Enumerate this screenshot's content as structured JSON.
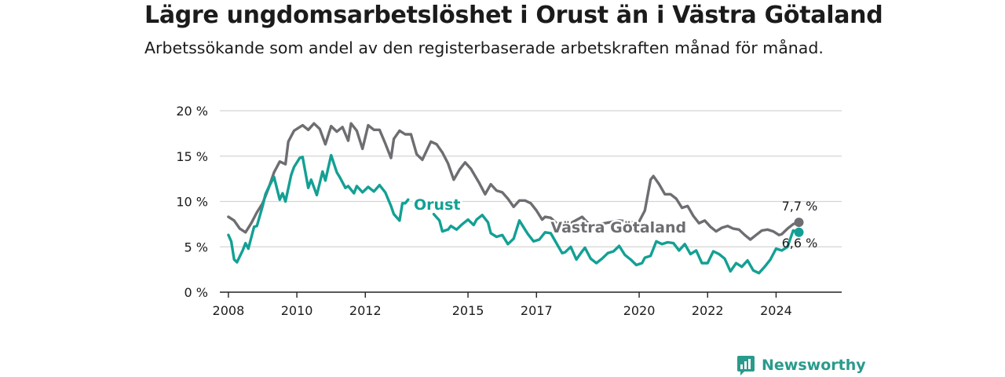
{
  "title": "Lägre ungdomsarbetslöshet i Orust än i Västra Götaland",
  "subtitle": "Arbetssökande som andel av den registerbaserade arbetskraften månad för månad.",
  "brand": {
    "name": "Newsworthy",
    "icon": "newsworthy-logo-icon",
    "color": "#2a9a8c"
  },
  "chart_data": {
    "type": "line",
    "title": "Lägre ungdomsarbetslöshet i Orust än i Västra Götaland",
    "subtitle": "Arbetssökande som andel av den registerbaserade arbetskraften månad för månad.",
    "xlabel": "",
    "ylabel": "",
    "x_ticks": [
      "2008",
      "2010",
      "2012",
      "2015",
      "2017",
      "2020",
      "2022",
      "2024"
    ],
    "y_ticks": [
      "0 %",
      "5 %",
      "10 %",
      "15 %",
      "20 %"
    ],
    "ylim": [
      0,
      20
    ],
    "xlim": [
      "2007-10",
      "2025-12"
    ],
    "grid": true,
    "legend": "inline labels",
    "series": [
      {
        "name": "Västra Götaland",
        "color": "#6e6d72",
        "end_label": "7,7 %",
        "points": [
          [
            "2008-01",
            8.3
          ],
          [
            "2008-03",
            7.9
          ],
          [
            "2008-05",
            7.0
          ],
          [
            "2008-07",
            6.6
          ],
          [
            "2008-09",
            7.6
          ],
          [
            "2008-11",
            8.8
          ],
          [
            "2009-01",
            9.8
          ],
          [
            "2009-03",
            11.4
          ],
          [
            "2009-05",
            13.2
          ],
          [
            "2009-07",
            14.4
          ],
          [
            "2009-09",
            14.1
          ],
          [
            "2009-10",
            16.6
          ],
          [
            "2009-12",
            17.8
          ],
          [
            "2010-03",
            18.4
          ],
          [
            "2010-05",
            17.9
          ],
          [
            "2010-07",
            18.6
          ],
          [
            "2010-09",
            18.0
          ],
          [
            "2010-11",
            16.3
          ],
          [
            "2011-01",
            18.3
          ],
          [
            "2011-03",
            17.7
          ],
          [
            "2011-05",
            18.2
          ],
          [
            "2011-07",
            16.7
          ],
          [
            "2011-08",
            18.6
          ],
          [
            "2011-10",
            17.8
          ],
          [
            "2011-12",
            15.8
          ],
          [
            "2012-02",
            18.4
          ],
          [
            "2012-04",
            17.9
          ],
          [
            "2012-06",
            17.9
          ],
          [
            "2012-08",
            16.4
          ],
          [
            "2012-10",
            14.8
          ],
          [
            "2012-11",
            16.9
          ],
          [
            "2013-01",
            17.8
          ],
          [
            "2013-03",
            17.4
          ],
          [
            "2013-05",
            17.4
          ],
          [
            "2013-07",
            15.2
          ],
          [
            "2013-09",
            14.6
          ],
          [
            "2013-12",
            16.6
          ],
          [
            "2014-02",
            16.3
          ],
          [
            "2014-04",
            15.4
          ],
          [
            "2014-06",
            14.2
          ],
          [
            "2014-08",
            12.4
          ],
          [
            "2014-10",
            13.5
          ],
          [
            "2014-12",
            14.3
          ],
          [
            "2015-02",
            13.6
          ],
          [
            "2015-05",
            12.0
          ],
          [
            "2015-07",
            10.8
          ],
          [
            "2015-09",
            11.9
          ],
          [
            "2015-11",
            11.2
          ],
          [
            "2016-01",
            11.0
          ],
          [
            "2016-03",
            10.3
          ],
          [
            "2016-05",
            9.4
          ],
          [
            "2016-07",
            10.1
          ],
          [
            "2016-09",
            10.1
          ],
          [
            "2016-11",
            9.8
          ],
          [
            "2017-01",
            9.0
          ],
          [
            "2017-03",
            8.0
          ],
          [
            "2017-04",
            8.3
          ],
          [
            "2017-06",
            8.2
          ],
          [
            "2017-08",
            7.6
          ],
          [
            "2017-10",
            7.6
          ],
          [
            "2018-01",
            7.6
          ],
          [
            "2018-05",
            8.3
          ],
          [
            "2018-08",
            7.3
          ],
          [
            "2019-01",
            7.6
          ],
          [
            "2019-06",
            7.9
          ],
          [
            "2019-09",
            7.8
          ],
          [
            "2019-11",
            7.7
          ],
          [
            "2020-01",
            7.8
          ],
          [
            "2020-03",
            9.0
          ],
          [
            "2020-05",
            12.4
          ],
          [
            "2020-06",
            12.8
          ],
          [
            "2020-08",
            11.9
          ],
          [
            "2020-10",
            10.8
          ],
          [
            "2020-12",
            10.8
          ],
          [
            "2021-02",
            10.3
          ],
          [
            "2021-04",
            9.3
          ],
          [
            "2021-06",
            9.5
          ],
          [
            "2021-08",
            8.4
          ],
          [
            "2021-10",
            7.6
          ],
          [
            "2021-12",
            7.9
          ],
          [
            "2022-02",
            7.2
          ],
          [
            "2022-04",
            6.7
          ],
          [
            "2022-06",
            7.1
          ],
          [
            "2022-08",
            7.3
          ],
          [
            "2022-10",
            7.0
          ],
          [
            "2022-12",
            6.9
          ],
          [
            "2023-02",
            6.3
          ],
          [
            "2023-04",
            5.8
          ],
          [
            "2023-06",
            6.3
          ],
          [
            "2023-08",
            6.8
          ],
          [
            "2023-10",
            6.9
          ],
          [
            "2023-12",
            6.7
          ],
          [
            "2024-02",
            6.3
          ],
          [
            "2024-03",
            6.4
          ],
          [
            "2024-05",
            7.0
          ],
          [
            "2024-07",
            7.5
          ],
          [
            "2024-09",
            7.7
          ]
        ]
      },
      {
        "name": "Orust",
        "color": "#13a094",
        "end_label": "6,6 %",
        "points": [
          [
            "2008-01",
            6.3
          ],
          [
            "2008-02",
            5.6
          ],
          [
            "2008-03",
            3.6
          ],
          [
            "2008-04",
            3.3
          ],
          [
            "2008-06",
            4.6
          ],
          [
            "2008-07",
            5.4
          ],
          [
            "2008-08",
            4.8
          ],
          [
            "2008-10",
            7.2
          ],
          [
            "2008-11",
            7.3
          ],
          [
            "2009-01",
            9.5
          ],
          [
            "2009-02",
            10.8
          ],
          [
            "2009-03",
            11.5
          ],
          [
            "2009-05",
            12.7
          ],
          [
            "2009-07",
            10.2
          ],
          [
            "2009-08",
            10.9
          ],
          [
            "2009-09",
            10.0
          ],
          [
            "2009-11",
            12.9
          ],
          [
            "2009-12",
            13.8
          ],
          [
            "2010-02",
            14.8
          ],
          [
            "2010-03",
            14.9
          ],
          [
            "2010-05",
            11.5
          ],
          [
            "2010-06",
            12.4
          ],
          [
            "2010-08",
            10.7
          ],
          [
            "2010-10",
            13.3
          ],
          [
            "2010-11",
            12.3
          ],
          [
            "2011-01",
            15.1
          ],
          [
            "2011-03",
            13.2
          ],
          [
            "2011-04",
            12.7
          ],
          [
            "2011-06",
            11.5
          ],
          [
            "2011-07",
            11.7
          ],
          [
            "2011-09",
            10.9
          ],
          [
            "2011-10",
            11.7
          ],
          [
            "2011-12",
            11.0
          ],
          [
            "2012-02",
            11.6
          ],
          [
            "2012-04",
            11.1
          ],
          [
            "2012-06",
            11.8
          ],
          [
            "2012-08",
            11.0
          ],
          [
            "2012-10",
            9.5
          ],
          [
            "2012-11",
            8.6
          ],
          [
            "2013-01",
            7.9
          ],
          [
            "2013-02",
            9.8
          ],
          [
            "2013-03",
            9.8
          ],
          [
            "2013-04",
            10.2
          ]
        ]
      },
      {
        "name": "Orust",
        "color": "#13a094",
        "end_label": "6,6 %",
        "points": [
          [
            "2014-01",
            8.6
          ],
          [
            "2014-03",
            7.9
          ],
          [
            "2014-04",
            6.7
          ],
          [
            "2014-06",
            6.9
          ],
          [
            "2014-07",
            7.3
          ],
          [
            "2014-09",
            6.9
          ],
          [
            "2014-11",
            7.5
          ],
          [
            "2015-01",
            8.0
          ],
          [
            "2015-03",
            7.4
          ],
          [
            "2015-04",
            8.0
          ],
          [
            "2015-06",
            8.5
          ],
          [
            "2015-08",
            7.7
          ],
          [
            "2015-09",
            6.5
          ],
          [
            "2015-11",
            6.1
          ],
          [
            "2016-01",
            6.3
          ],
          [
            "2016-03",
            5.3
          ],
          [
            "2016-05",
            5.9
          ],
          [
            "2016-07",
            7.9
          ],
          [
            "2016-09",
            6.9
          ],
          [
            "2016-10",
            6.4
          ],
          [
            "2016-12",
            5.6
          ],
          [
            "2017-02",
            5.8
          ],
          [
            "2017-04",
            6.6
          ],
          [
            "2017-06",
            6.5
          ],
          [
            "2017-08",
            5.4
          ],
          [
            "2017-10",
            4.3
          ],
          [
            "2017-11",
            4.4
          ],
          [
            "2018-01",
            5.0
          ],
          [
            "2018-03",
            3.6
          ],
          [
            "2018-05",
            4.5
          ],
          [
            "2018-06",
            4.9
          ],
          [
            "2018-08",
            3.7
          ],
          [
            "2018-10",
            3.2
          ],
          [
            "2018-12",
            3.7
          ],
          [
            "2019-02",
            4.3
          ],
          [
            "2019-04",
            4.5
          ],
          [
            "2019-06",
            5.1
          ],
          [
            "2019-08",
            4.1
          ],
          [
            "2019-10",
            3.6
          ],
          [
            "2019-12",
            3.0
          ],
          [
            "2020-02",
            3.2
          ],
          [
            "2020-03",
            3.8
          ],
          [
            "2020-05",
            4.0
          ],
          [
            "2020-07",
            5.6
          ],
          [
            "2020-09",
            5.3
          ],
          [
            "2020-11",
            5.5
          ],
          [
            "2021-01",
            5.4
          ],
          [
            "2021-03",
            4.6
          ],
          [
            "2021-05",
            5.3
          ],
          [
            "2021-07",
            4.2
          ],
          [
            "2021-09",
            4.6
          ],
          [
            "2021-11",
            3.2
          ],
          [
            "2022-01",
            3.2
          ],
          [
            "2022-03",
            4.5
          ],
          [
            "2022-05",
            4.2
          ],
          [
            "2022-07",
            3.7
          ],
          [
            "2022-09",
            2.3
          ],
          [
            "2022-11",
            3.2
          ],
          [
            "2023-01",
            2.8
          ],
          [
            "2023-03",
            3.5
          ],
          [
            "2023-05",
            2.4
          ],
          [
            "2023-07",
            2.1
          ],
          [
            "2023-09",
            2.8
          ],
          [
            "2023-11",
            3.6
          ],
          [
            "2024-01",
            4.8
          ],
          [
            "2024-03",
            4.6
          ],
          [
            "2024-05",
            5.0
          ],
          [
            "2024-07",
            6.8
          ],
          [
            "2024-09",
            6.6
          ]
        ]
      }
    ]
  }
}
